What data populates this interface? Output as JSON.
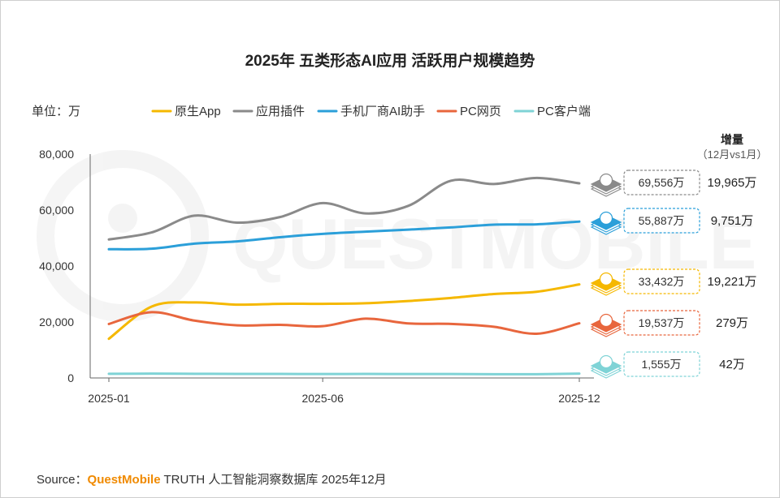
{
  "chart_data": {
    "type": "line",
    "title": "2025年 五类形态AI应用 活跃用户规模趋势",
    "unit_label": "单位：万",
    "ylim": [
      0,
      80000
    ],
    "yticks": [
      "0",
      "20,000",
      "40,000",
      "60,000",
      "80,000"
    ],
    "ytick_values": [
      0,
      20000,
      40000,
      60000,
      80000
    ],
    "xticks": [
      "2025-01",
      "2025-06",
      "2025-12"
    ],
    "xtick_index": [
      0,
      5,
      11
    ],
    "n_points": 12,
    "legend_position": "top",
    "series": [
      {
        "name": "原生App",
        "color": "#f5b800",
        "icon": "app-icon",
        "values": [
          14000,
          25500,
          27000,
          26200,
          26500,
          26500,
          26700,
          27500,
          28600,
          30000,
          30800,
          33432
        ],
        "value_label": "33,432万",
        "increase_label": "19,221万"
      },
      {
        "name": "应用插件",
        "color": "#8a8a8a",
        "icon": "ai-plugin-icon",
        "values": [
          49500,
          52000,
          58000,
          55500,
          57500,
          62500,
          58800,
          61500,
          70500,
          69300,
          71500,
          69556
        ],
        "value_label": "69,556万",
        "increase_label": "19,965万"
      },
      {
        "name": "手机厂商AI助手",
        "color": "#2b9fd9",
        "icon": "phone-icon",
        "values": [
          46000,
          46200,
          48000,
          48800,
          50300,
          51500,
          52300,
          53000,
          53800,
          54800,
          54900,
          55887
        ],
        "value_label": "55,887万",
        "increase_label": "9,751万"
      },
      {
        "name": "PC网页",
        "color": "#e8663d",
        "icon": "monitor-icon",
        "values": [
          19300,
          23500,
          20500,
          18800,
          19000,
          18500,
          21200,
          19500,
          19300,
          18300,
          15800,
          19537
        ],
        "value_label": "19,537万",
        "increase_label": "279万"
      },
      {
        "name": "PC客户端",
        "color": "#7fd3d6",
        "icon": "desktop-client-icon",
        "values": [
          1500,
          1550,
          1500,
          1450,
          1450,
          1400,
          1450,
          1400,
          1400,
          1350,
          1350,
          1555
        ],
        "value_label": "1,555万",
        "increase_label": "42万"
      }
    ],
    "increase_header": "增量",
    "increase_sub": "（12月vs1月）"
  },
  "watermark": "QUESTMOBILE",
  "source": {
    "prefix": "Source：",
    "brand": "QuestMobile",
    "rest": " TRUTH 人工智能洞察数据库 2025年12月",
    "brand_color": "#f08a00"
  }
}
